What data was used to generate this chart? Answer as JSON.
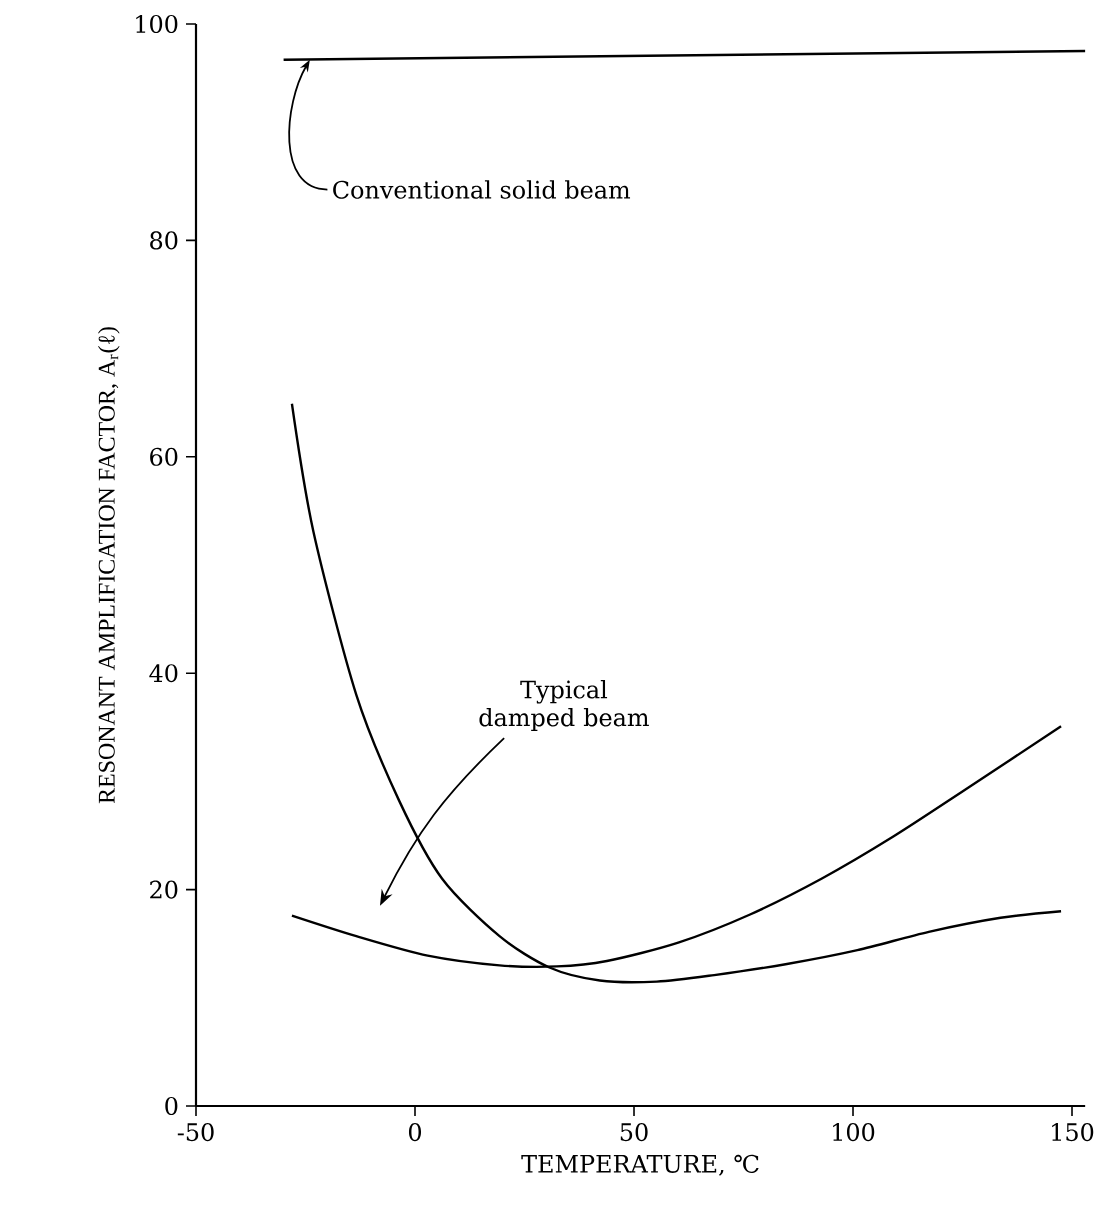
{
  "chart_data": {
    "type": "line",
    "xlabel": "TEMPERATURE, ℃",
    "ylabel": "RESONANT AMPLIFICATION FACTOR, A$_{r}$(ℓ)",
    "xlim": [
      -50,
      153
    ],
    "ylim": [
      0,
      100
    ],
    "xticks": [
      -50,
      0,
      50,
      100,
      150
    ],
    "yticks": [
      0,
      20,
      40,
      60,
      80,
      100
    ],
    "grid": false,
    "marker": "none",
    "line_style": "solid",
    "series": [
      {
        "color": "#000000",
        "x": [
          -30,
          153
        ],
        "values": [
          96.7,
          97.5
        ]
      },
      {
        "color": "#000000",
        "x": [
          -28.1,
          -23.2,
          -13.4,
          -3.6,
          6.2,
          19.3,
          30.7,
          42.2,
          55.2,
          68.3,
          84.6,
          101,
          117.3,
          133.7,
          147.5
        ],
        "values": [
          64.9,
          53.1,
          38.0,
          28.2,
          21.0,
          15.7,
          12.8,
          11.6,
          11.5,
          12.1,
          13.1,
          14.4,
          16.1,
          17.4,
          18.0
        ]
      },
      {
        "color": "#000000",
        "x": [
          -28.1,
          -13.4,
          2.9,
          19.3,
          32.4,
          43.8,
          60.1,
          76.5,
          92.8,
          109.2,
          125.5,
          147.5
        ],
        "values": [
          17.6,
          15.7,
          13.9,
          13.0,
          12.9,
          13.4,
          15.1,
          17.7,
          21.0,
          24.9,
          29.2,
          35.1
        ]
      }
    ],
    "annotations": [
      {
        "text": "Conventional solid beam",
        "x": -24,
        "y": 96.7
      },
      "Typical damped beam"
    ]
  }
}
